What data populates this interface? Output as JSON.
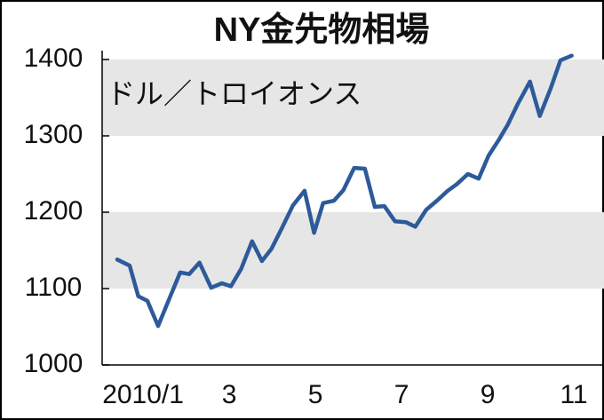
{
  "chart_data": {
    "type": "line",
    "title": "NY金先物相場",
    "y_label": "ドル／トロイオンス",
    "xlim": [
      0.55,
      12.2
    ],
    "xticks": [
      {
        "value": 1.5,
        "label": "2010/1"
      },
      {
        "value": 3.5,
        "label": "3"
      },
      {
        "value": 5.5,
        "label": "5"
      },
      {
        "value": 7.5,
        "label": "7"
      },
      {
        "value": 9.5,
        "label": "9"
      },
      {
        "value": 11.5,
        "label": "11"
      }
    ],
    "ylim": [
      1000,
      1400
    ],
    "yticks": [
      1000,
      1100,
      1200,
      1300,
      1400
    ],
    "band_color": "#e6e6e6",
    "series": [
      {
        "color": "#2d5a9a",
        "x": [
          0.9,
          1.19,
          1.39,
          1.6,
          1.85,
          2.11,
          2.36,
          2.57,
          2.81,
          3.08,
          3.33,
          3.54,
          3.78,
          4.03,
          4.26,
          4.48,
          4.73,
          4.98,
          5.25,
          5.47,
          5.68,
          5.93,
          6.15,
          6.4,
          6.65,
          6.88,
          7.1,
          7.35,
          7.6,
          7.82,
          8.07,
          8.32,
          8.57,
          8.79,
          9.04,
          9.29,
          9.52,
          9.76,
          9.97,
          10.2,
          10.48,
          10.71,
          10.96,
          11.19,
          11.45
        ],
        "values": [
          1138,
          1130,
          1090,
          1084,
          1051,
          1087,
          1121,
          1119,
          1134,
          1101,
          1107,
          1103,
          1126,
          1162,
          1136,
          1152,
          1180,
          1209,
          1228,
          1173,
          1212,
          1215,
          1229,
          1258,
          1257,
          1207,
          1208,
          1188,
          1187,
          1181,
          1203,
          1215,
          1228,
          1237,
          1250,
          1244,
          1274,
          1295,
          1315,
          1342,
          1371,
          1326,
          1362,
          1399,
          1405
        ]
      }
    ]
  }
}
